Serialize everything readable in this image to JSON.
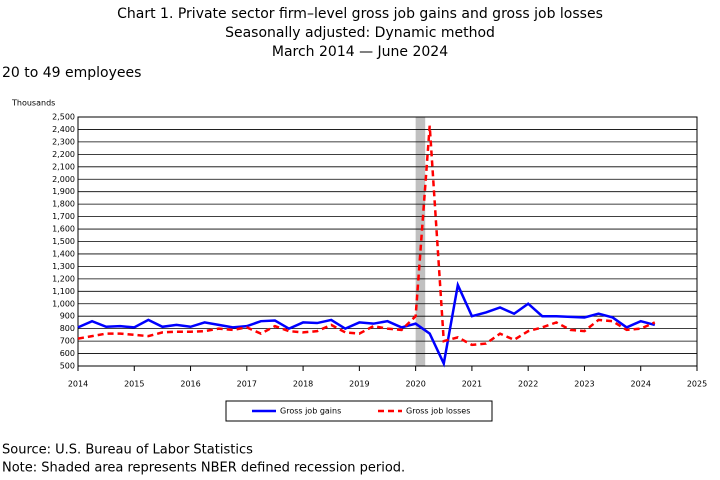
{
  "chart_data": {
    "type": "line",
    "title": "Chart 1. Private sector firm–level gross job gains and gross job losses",
    "subtitle": "Seasonally adjusted: Dynamic method",
    "date_range": "March 2014 — June 2024",
    "panel_title": "20 to 49 employees",
    "y_label": "Thousands",
    "source": "Source: U.S. Bureau of Labor Statistics",
    "note": "Note: Shaded area represents NBER defined recession period.",
    "x": [
      2014,
      2014.25,
      2014.5,
      2014.75,
      2015,
      2015.25,
      2015.5,
      2015.75,
      2016,
      2016.25,
      2016.5,
      2016.75,
      2017,
      2017.25,
      2017.5,
      2017.75,
      2018,
      2018.25,
      2018.5,
      2018.75,
      2019,
      2019.25,
      2019.5,
      2019.75,
      2020,
      2020.25,
      2020.5,
      2020.75,
      2021,
      2021.25,
      2021.5,
      2021.75,
      2022,
      2022.25,
      2022.5,
      2022.75,
      2023,
      2023.25,
      2023.5,
      2023.75,
      2024,
      2024.25
    ],
    "series": [
      {
        "name": "Gross job gains",
        "color": "#0000ff",
        "dashed": false,
        "values": [
          810,
          860,
          815,
          820,
          810,
          870,
          815,
          830,
          815,
          850,
          830,
          810,
          820,
          860,
          865,
          800,
          850,
          845,
          870,
          800,
          850,
          840,
          860,
          810,
          840,
          760,
          520,
          1150,
          900,
          930,
          970,
          920,
          1000,
          900,
          900,
          895,
          890,
          920,
          890,
          810,
          860,
          830
        ]
      },
      {
        "name": "Gross job losses",
        "color": "#ff0000",
        "dashed": true,
        "values": [
          720,
          740,
          760,
          760,
          750,
          740,
          770,
          775,
          775,
          780,
          800,
          790,
          810,
          760,
          820,
          780,
          770,
          780,
          830,
          770,
          760,
          820,
          800,
          790,
          900,
          2430,
          700,
          730,
          670,
          680,
          760,
          710,
          780,
          810,
          850,
          790,
          780,
          870,
          860,
          790,
          800,
          850
        ]
      }
    ],
    "recession": [
      2020,
      2020.17
    ],
    "xlim": [
      2014,
      2025
    ],
    "xticks": [
      2014,
      2015,
      2016,
      2017,
      2018,
      2019,
      2020,
      2021,
      2022,
      2023,
      2024,
      2025
    ],
    "ylim": [
      500,
      2500
    ],
    "yticks": [
      500,
      600,
      700,
      800,
      900,
      {
        "value": 1000,
        "label": "1,000"
      },
      {
        "value": 1100,
        "label": "1,100"
      },
      {
        "value": 1200,
        "label": "1,200"
      },
      {
        "value": 1300,
        "label": "1,300"
      },
      {
        "value": 1400,
        "label": "1,400"
      },
      {
        "value": 1500,
        "label": "1,500"
      },
      {
        "value": 1600,
        "label": "1,600"
      },
      {
        "value": 1700,
        "label": "1,700"
      },
      {
        "value": 1800,
        "label": "1,800"
      },
      {
        "value": 1900,
        "label": "1,900"
      },
      {
        "value": 2000,
        "label": "2,000"
      },
      {
        "value": 2100,
        "label": "2,100"
      },
      {
        "value": 2200,
        "label": "2,200"
      },
      {
        "value": 2300,
        "label": "2,300"
      },
      {
        "value": 2400,
        "label": "2,400"
      },
      {
        "value": 2500,
        "label": "2,500"
      }
    ],
    "grid": true
  }
}
